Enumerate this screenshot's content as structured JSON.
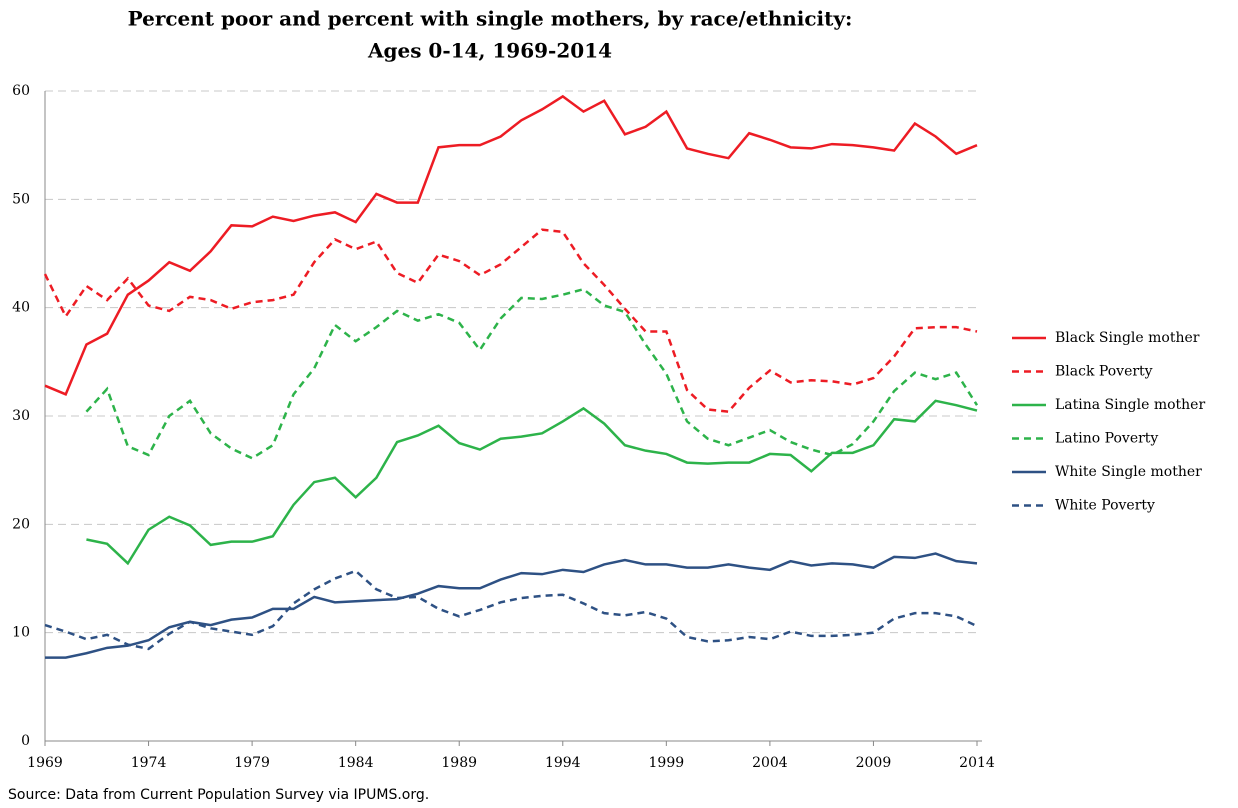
{
  "chart_data": {
    "type": "line",
    "title": [
      "Percent poor and percent with single mothers, by race/ethnicity:",
      "Ages 0-14, 1969-2014"
    ],
    "source": "Source: Data from Current Population Survey via IPUMS.org.",
    "x": [
      1969,
      1970,
      1971,
      1972,
      1973,
      1974,
      1975,
      1976,
      1977,
      1978,
      1979,
      1980,
      1981,
      1982,
      1983,
      1984,
      1985,
      1986,
      1987,
      1988,
      1989,
      1990,
      1991,
      1992,
      1993,
      1994,
      1995,
      1996,
      1997,
      1998,
      1999,
      2000,
      2001,
      2002,
      2003,
      2004,
      2005,
      2006,
      2007,
      2008,
      2009,
      2010,
      2011,
      2012,
      2013,
      2014
    ],
    "xlim": [
      1969,
      2014
    ],
    "xticks": [
      1969,
      1974,
      1979,
      1984,
      1989,
      1994,
      1999,
      2004,
      2009,
      2014
    ],
    "ylim": [
      0,
      60
    ],
    "yticks": [
      0,
      10,
      20,
      30,
      40,
      50,
      60
    ],
    "grid": true,
    "legend": "right",
    "series": [
      {
        "name": "Black Single mother",
        "color": "#ed1c24",
        "dashed": false,
        "values": [
          32.8,
          32.0,
          36.6,
          37.6,
          41.2,
          42.5,
          44.2,
          43.4,
          45.2,
          47.6,
          47.5,
          48.4,
          48.0,
          48.5,
          48.8,
          47.9,
          50.5,
          49.7,
          49.7,
          54.8,
          55.0,
          55.0,
          55.8,
          57.3,
          58.3,
          59.5,
          58.1,
          59.1,
          56.0,
          56.7,
          58.1,
          54.7,
          54.2,
          53.8,
          56.1,
          55.5,
          54.8,
          54.7,
          55.1,
          55.0,
          54.8,
          54.5,
          57.0,
          55.8,
          54.2,
          55.0
        ]
      },
      {
        "name": "Black Poverty",
        "color": "#ed1c24",
        "dashed": true,
        "values": [
          43.1,
          39.2,
          42.0,
          40.7,
          42.7,
          40.2,
          39.7,
          41.0,
          40.7,
          39.9,
          40.5,
          40.7,
          41.2,
          44.2,
          46.3,
          45.4,
          46.1,
          43.2,
          42.3,
          44.9,
          44.3,
          43.0,
          44.0,
          45.6,
          47.2,
          47.0,
          44.1,
          42.1,
          39.9,
          37.8,
          37.8,
          32.4,
          30.6,
          30.4,
          32.6,
          34.2,
          33.1,
          33.3,
          33.2,
          32.9,
          33.5,
          35.5,
          38.1,
          38.2,
          38.2,
          37.8
        ]
      },
      {
        "name": "Latina Single mother",
        "color": "#2db34a",
        "dashed": false,
        "values": [
          null,
          null,
          18.6,
          18.2,
          16.4,
          19.5,
          20.7,
          19.9,
          18.1,
          18.4,
          18.4,
          18.9,
          21.8,
          23.9,
          24.3,
          22.5,
          24.3,
          27.6,
          28.2,
          29.1,
          27.5,
          26.9,
          27.9,
          28.1,
          28.4,
          29.5,
          30.7,
          29.3,
          27.3,
          26.8,
          26.5,
          25.7,
          25.6,
          25.7,
          25.7,
          26.5,
          26.4,
          24.9,
          26.6,
          26.6,
          27.3,
          29.7,
          29.5,
          31.4,
          31.0,
          30.5
        ]
      },
      {
        "name": "Latino Poverty",
        "color": "#2db34a",
        "dashed": true,
        "values": [
          null,
          null,
          30.4,
          32.5,
          27.2,
          26.4,
          30.0,
          31.4,
          28.4,
          27.0,
          26.1,
          27.3,
          32.0,
          34.4,
          38.4,
          36.9,
          38.2,
          39.7,
          38.8,
          39.4,
          38.6,
          36.1,
          39.0,
          40.9,
          40.8,
          41.2,
          41.7,
          40.2,
          39.6,
          36.6,
          33.9,
          29.5,
          27.9,
          27.3,
          28.0,
          28.7,
          27.6,
          26.9,
          26.4,
          27.4,
          29.5,
          32.3,
          34.0,
          33.4,
          34.0,
          31.0
        ]
      },
      {
        "name": "White Single mother",
        "color": "#2e5184",
        "dashed": false,
        "values": [
          7.7,
          7.7,
          8.1,
          8.6,
          8.8,
          9.3,
          10.5,
          11.0,
          10.7,
          11.2,
          11.4,
          12.2,
          12.2,
          13.3,
          12.8,
          12.9,
          13.0,
          13.1,
          13.6,
          14.3,
          14.1,
          14.1,
          14.9,
          15.5,
          15.4,
          15.8,
          15.6,
          16.3,
          16.7,
          16.3,
          16.3,
          16.0,
          16.0,
          16.3,
          16.0,
          15.8,
          16.6,
          16.2,
          16.4,
          16.3,
          16.0,
          17.0,
          16.9,
          17.3,
          16.6,
          16.4
        ]
      },
      {
        "name": "White Poverty",
        "color": "#2e5184",
        "dashed": true,
        "values": [
          10.7,
          10.1,
          9.4,
          9.8,
          8.9,
          8.5,
          9.9,
          11.0,
          10.4,
          10.1,
          9.8,
          10.6,
          12.7,
          14.0,
          15.0,
          15.7,
          14.0,
          13.2,
          13.3,
          12.2,
          11.5,
          12.1,
          12.8,
          13.2,
          13.4,
          13.5,
          12.7,
          11.8,
          11.6,
          11.9,
          11.3,
          9.6,
          9.2,
          9.3,
          9.6,
          9.4,
          10.1,
          9.7,
          9.7,
          9.8,
          10.0,
          11.3,
          11.8,
          11.8,
          11.5,
          10.6
        ]
      }
    ]
  }
}
